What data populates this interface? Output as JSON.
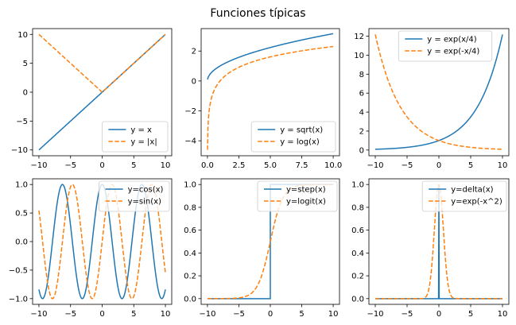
{
  "figure": {
    "suptitle": "Funciones típicas",
    "colors": {
      "series1": "#1f77b4",
      "series2": "#ff7f0e"
    }
  },
  "chart_data": [
    {
      "type": "line",
      "x_range": [
        -10,
        10
      ],
      "xlim": [
        -11,
        11
      ],
      "ylim": [
        -11,
        11
      ],
      "xticks": [
        -10,
        -5,
        0,
        5,
        10
      ],
      "yticks": [
        -10,
        -5,
        0,
        5,
        10
      ],
      "xtick_labels": [
        "−10",
        "−5",
        "0",
        "5",
        "10"
      ],
      "ytick_labels": [
        "−10",
        "−5",
        "0",
        "5",
        "10"
      ],
      "legend_position": "lower-right",
      "series": [
        {
          "name": "y = x",
          "func": "x",
          "style": "solid",
          "x": [
            -10,
            0,
            10
          ],
          "y": [
            -10,
            0,
            10
          ]
        },
        {
          "name": "y = |x|",
          "func": "abs",
          "style": "dashed",
          "x": [
            -10,
            0,
            10
          ],
          "y": [
            10,
            0,
            10
          ]
        }
      ]
    },
    {
      "type": "line",
      "x_range": [
        0.01,
        10
      ],
      "xlim": [
        -0.5,
        10.5
      ],
      "ylim": [
        -5.0,
        3.5
      ],
      "xticks": [
        0,
        2.5,
        5,
        7.5,
        10
      ],
      "yticks": [
        -4,
        -2,
        0,
        2
      ],
      "xtick_labels": [
        "0.0",
        "2.5",
        "5.0",
        "7.5",
        "10.0"
      ],
      "ytick_labels": [
        "−4",
        "−2",
        "0",
        "2"
      ],
      "legend_position": "lower-right",
      "series": [
        {
          "name": "y = sqrt(x)",
          "func": "sqrt",
          "style": "solid",
          "x": [
            0.01,
            2.5,
            5,
            7.5,
            10
          ],
          "y": [
            0.1,
            1.58,
            2.24,
            2.74,
            3.16
          ]
        },
        {
          "name": "y = log(x)",
          "func": "log",
          "style": "dashed",
          "x": [
            0.01,
            2.5,
            5,
            7.5,
            10
          ],
          "y": [
            -4.61,
            0.92,
            1.61,
            2.01,
            2.3
          ]
        }
      ]
    },
    {
      "type": "line",
      "x_range": [
        -10,
        10
      ],
      "xlim": [
        -11,
        11
      ],
      "ylim": [
        -0.6,
        12.8
      ],
      "xticks": [
        -10,
        -5,
        0,
        5,
        10
      ],
      "yticks": [
        0,
        2,
        4,
        6,
        8,
        10,
        12
      ],
      "xtick_labels": [
        "−10",
        "−5",
        "0",
        "5",
        "10"
      ],
      "ytick_labels": [
        "0",
        "2",
        "4",
        "6",
        "8",
        "10",
        "12"
      ],
      "legend_position": "upper-center",
      "series": [
        {
          "name": "y = exp(x/4)",
          "func": "exp4",
          "style": "solid",
          "x": [
            -10,
            -5,
            0,
            5,
            10
          ],
          "y": [
            0.08,
            0.29,
            1.0,
            3.49,
            12.18
          ]
        },
        {
          "name": "y = exp(-x/4)",
          "func": "expm4",
          "style": "dashed",
          "x": [
            -10,
            -5,
            0,
            5,
            10
          ],
          "y": [
            12.18,
            3.49,
            1.0,
            0.29,
            0.08
          ]
        }
      ]
    },
    {
      "type": "line",
      "x_range": [
        -10,
        10
      ],
      "xlim": [
        -11,
        11
      ],
      "ylim": [
        -1.1,
        1.1
      ],
      "xticks": [
        -10,
        -5,
        0,
        5,
        10
      ],
      "yticks": [
        -1.0,
        -0.5,
        0.0,
        0.5,
        1.0
      ],
      "xtick_labels": [
        "−10",
        "−5",
        "0",
        "5",
        "10"
      ],
      "ytick_labels": [
        "−1.0",
        "−0.5",
        "0.0",
        "0.5",
        "1.0"
      ],
      "legend_position": "upper-right",
      "series": [
        {
          "name": "y=cos(x)",
          "func": "cos",
          "style": "solid",
          "x": [
            -10,
            -6.28,
            0,
            6.28,
            10
          ],
          "y": [
            -0.84,
            1.0,
            1.0,
            1.0,
            -0.84
          ]
        },
        {
          "name": "y=sin(x)",
          "func": "sin",
          "style": "dashed",
          "x": [
            -10,
            -4.71,
            1.57,
            7.85,
            10
          ],
          "y": [
            0.54,
            1.0,
            1.0,
            1.0,
            -0.54
          ]
        }
      ]
    },
    {
      "type": "line",
      "x_range": [
        -10,
        10
      ],
      "xlim": [
        -11,
        11
      ],
      "ylim": [
        -0.05,
        1.05
      ],
      "xticks": [
        -10,
        -5,
        0,
        5,
        10
      ],
      "yticks": [
        0.0,
        0.2,
        0.4,
        0.6,
        0.8,
        1.0
      ],
      "xtick_labels": [
        "−10",
        "−5",
        "0",
        "5",
        "10"
      ],
      "ytick_labels": [
        "0.0",
        "0.2",
        "0.4",
        "0.6",
        "0.8",
        "1.0"
      ],
      "legend_position": "upper-right",
      "series": [
        {
          "name": "y=step(x)",
          "func": "step",
          "style": "solid",
          "x": [
            -10,
            0,
            0,
            10
          ],
          "y": [
            0,
            0,
            1,
            1
          ]
        },
        {
          "name": "y=logit(x)",
          "func": "logistic",
          "style": "dashed",
          "x": [
            -10,
            -5,
            0,
            5,
            10
          ],
          "y": [
            0.0,
            0.01,
            0.5,
            0.99,
            1.0
          ]
        }
      ]
    },
    {
      "type": "line",
      "x_range": [
        -10,
        10
      ],
      "xlim": [
        -11,
        11
      ],
      "ylim": [
        -0.05,
        1.05
      ],
      "xticks": [
        -10,
        -5,
        0,
        5,
        10
      ],
      "yticks": [
        0.0,
        0.2,
        0.4,
        0.6,
        0.8,
        1.0
      ],
      "xtick_labels": [
        "−10",
        "−5",
        "0",
        "5",
        "10"
      ],
      "ytick_labels": [
        "0.0",
        "0.2",
        "0.4",
        "0.6",
        "0.8",
        "1.0"
      ],
      "legend_position": "upper-right",
      "series": [
        {
          "name": "y=delta(x)",
          "func": "delta",
          "style": "solid",
          "x": [
            -10,
            0,
            0,
            0,
            10
          ],
          "y": [
            0,
            0,
            1,
            0,
            0
          ]
        },
        {
          "name": "y=exp(-x^2)",
          "func": "gauss",
          "style": "dashed",
          "x": [
            -2,
            -1,
            0,
            1,
            2
          ],
          "y": [
            0.02,
            0.37,
            1.0,
            0.37,
            0.02
          ]
        }
      ]
    }
  ]
}
